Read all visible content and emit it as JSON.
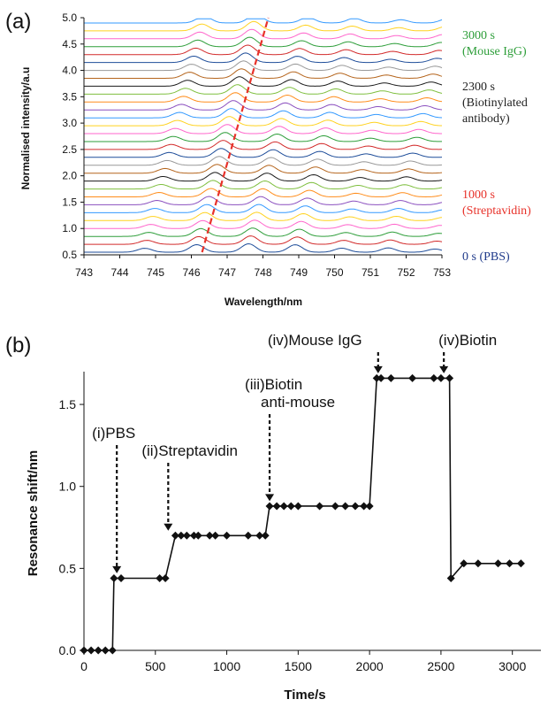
{
  "chart_data": [
    {
      "type": "line",
      "panel_label": "(a)",
      "xlabel": "Wavelength/nm",
      "ylabel": "Normalised intensity/a.u",
      "xlim": [
        743,
        753
      ],
      "ylim": [
        0.5,
        5.0
      ],
      "x_ticks": [
        "743",
        "744",
        "745",
        "746",
        "747",
        "748",
        "749",
        "750",
        "751",
        "752",
        "753"
      ],
      "y_ticks": [
        "0.5",
        "1.0",
        "1.5",
        "2.0",
        "2.5",
        "3.0",
        "3.5",
        "4.0",
        "4.5",
        "5.0"
      ],
      "series_count": 30,
      "series_offset_step": 0.15,
      "base_peaks_nm": [
        744.7,
        746.15,
        747.6,
        748.9,
        750.2,
        751.5,
        752.8
      ],
      "total_peak_shift_nm": 1.65,
      "series_colors": [
        "#1f4e9a",
        "#d22a2a",
        "#2e9e3a",
        "#ff66cc",
        "#ffd21f",
        "#3399ff",
        "#8a4fbf",
        "#ff8c1a",
        "#7fbf3f",
        "#1a1a1a",
        "#b5651d",
        "#999999"
      ],
      "trend_line": {
        "x": [
          746.3,
          748.15
        ],
        "y": [
          0.55,
          5.0
        ],
        "color": "#e8322a",
        "style": "dashed"
      },
      "annotations": [
        {
          "lines": [
            "3000 s",
            "(Mouse IgG)"
          ],
          "color": "#2e9e3a"
        },
        {
          "lines": [
            "2300 s",
            "(Biotinylated",
            "antibody)"
          ],
          "color": "#222222"
        },
        {
          "lines": [
            "1000 s",
            "(Streptavidin)"
          ],
          "color": "#e8322a"
        },
        {
          "lines": [
            "0 s (PBS)"
          ],
          "color": "#1f3a8a"
        }
      ]
    },
    {
      "type": "line",
      "panel_label": "(b)",
      "xlabel": "Time/s",
      "ylabel": "Resonance shift/nm",
      "xlim": [
        0,
        3200
      ],
      "ylim": [
        0,
        1.7
      ],
      "x_ticks": [
        "0",
        "500",
        "1000",
        "1500",
        "2000",
        "2500",
        "3000"
      ],
      "y_ticks": [
        "0.0",
        "0.5",
        "1.0",
        "1.5"
      ],
      "marker": "diamond",
      "x": [
        0,
        50,
        100,
        150,
        200,
        210,
        260,
        530,
        570,
        640,
        680,
        720,
        770,
        800,
        880,
        920,
        1000,
        1150,
        1230,
        1270,
        1300,
        1350,
        1400,
        1450,
        1500,
        1650,
        1760,
        1830,
        1900,
        1960,
        2000,
        2050,
        2080,
        2150,
        2300,
        2450,
        2500,
        2560,
        2570,
        2660,
        2760,
        2900,
        2980,
        3060
      ],
      "y": [
        0,
        0,
        0,
        0,
        0,
        0.44,
        0.44,
        0.44,
        0.44,
        0.7,
        0.7,
        0.7,
        0.7,
        0.7,
        0.7,
        0.7,
        0.7,
        0.7,
        0.7,
        0.7,
        0.88,
        0.88,
        0.88,
        0.88,
        0.88,
        0.88,
        0.88,
        0.88,
        0.88,
        0.88,
        0.88,
        1.66,
        1.66,
        1.66,
        1.66,
        1.66,
        1.66,
        1.66,
        0.44,
        0.53,
        0.53,
        0.53,
        0.53,
        0.53
      ],
      "events": [
        {
          "lines": [
            "(i)PBS"
          ],
          "x": 230,
          "arrow_tip_y": 0.47
        },
        {
          "lines": [
            "(ii)Streptavidin"
          ],
          "x": 590,
          "arrow_tip_y": 0.73
        },
        {
          "lines": [
            "(iii)Biotin",
            "anti-mouse"
          ],
          "x": 1300,
          "arrow_tip_y": 0.91
        },
        {
          "lines": [
            "(iv)Mouse IgG"
          ],
          "x": 2060,
          "arrow_tip_y": 1.69
        },
        {
          "lines": [
            "(iv)Biotin"
          ],
          "x": 2520,
          "arrow_tip_y": 1.69
        }
      ]
    }
  ]
}
